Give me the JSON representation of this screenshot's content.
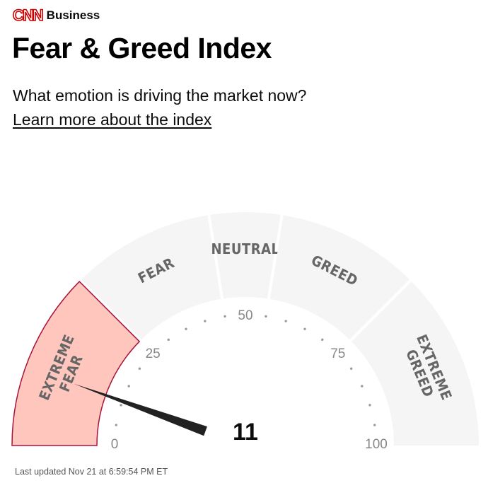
{
  "header": {
    "logo_text": "CNN",
    "section": "Business"
  },
  "title": "Fear & Greed Index",
  "subtitle": "What emotion is driving the market now?",
  "learn_more": "Learn more about the index",
  "gauge": {
    "value": 11,
    "value_text": "11",
    "min": 0,
    "max": 100,
    "active_rating": "EXTREME FEAR",
    "segments": [
      {
        "id": "extreme-fear",
        "lines": [
          "EXTREME",
          "FEAR"
        ],
        "from": 0,
        "to": 25
      },
      {
        "id": "fear",
        "lines": [
          "FEAR"
        ],
        "from": 25,
        "to": 45
      },
      {
        "id": "neutral",
        "lines": [
          "NEUTRAL"
        ],
        "from": 45,
        "to": 55
      },
      {
        "id": "greed",
        "lines": [
          "GREED"
        ],
        "from": 55,
        "to": 75
      },
      {
        "id": "extreme-greed",
        "lines": [
          "EXTREME",
          "GREED"
        ],
        "from": 75,
        "to": 100
      }
    ],
    "tick_labels": [
      {
        "value": 0,
        "text": "0"
      },
      {
        "value": 25,
        "text": "25"
      },
      {
        "value": 50,
        "text": "50"
      },
      {
        "value": 75,
        "text": "75"
      },
      {
        "value": 100,
        "text": "100"
      }
    ],
    "colors": {
      "inactive_fill": "#f5f5f5",
      "active_fill": "#ffc6be",
      "active_stroke": "#a7153a",
      "needle": "#222222",
      "dots": "#9a9a9a"
    }
  },
  "last_updated": "Last updated Nov 21 at 6:59:54 PM ET"
}
